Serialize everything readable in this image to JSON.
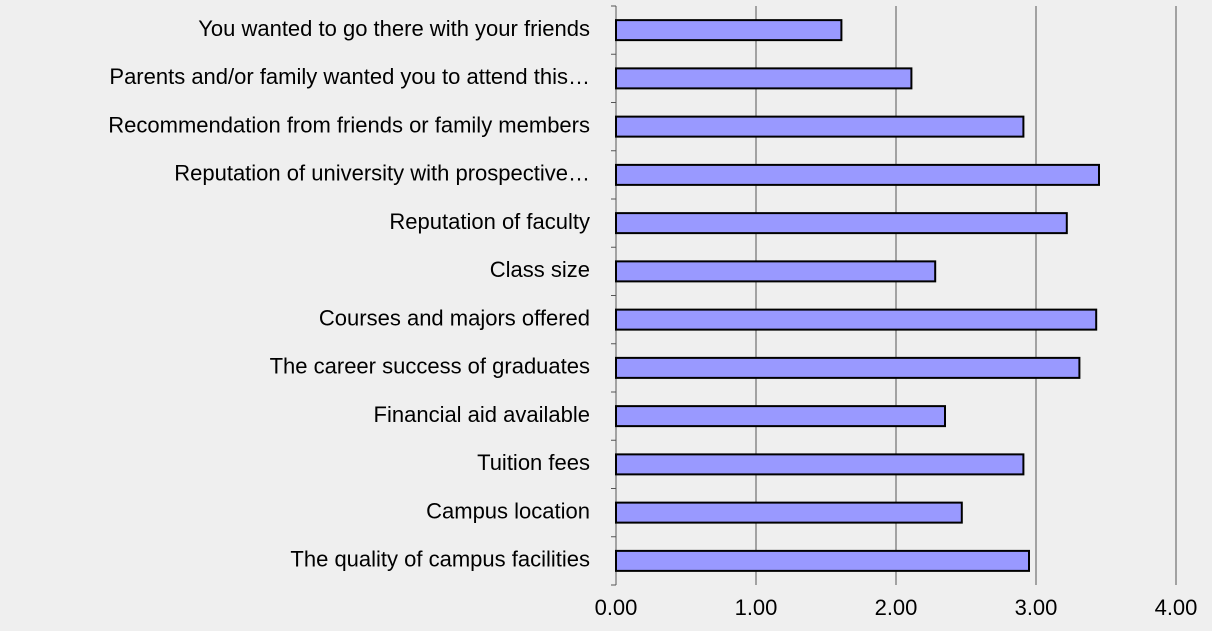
{
  "chart_data": {
    "type": "barh",
    "categories": [
      "You wanted to go there with your friends",
      "Parents and/or family wanted you to attend this…",
      "Recommendation from friends or family members",
      "Reputation of university with prospective…",
      "Reputation of faculty",
      "Class size",
      "Courses and majors offered",
      "The career success of graduates",
      "Financial aid available",
      "Tuition fees",
      "Campus location",
      "The quality of campus facilities"
    ],
    "values": [
      1.61,
      2.11,
      2.91,
      3.45,
      3.22,
      2.28,
      3.43,
      3.31,
      2.35,
      2.91,
      2.47,
      2.95
    ],
    "color": "#9999ff",
    "xlim": [
      0,
      4
    ],
    "xticks": [
      {
        "value": 0,
        "label": "0.00"
      },
      {
        "value": 1,
        "label": "1.00"
      },
      {
        "value": 2,
        "label": "2.00"
      },
      {
        "value": 3,
        "label": "3.00"
      },
      {
        "value": 4,
        "label": "4.00"
      }
    ],
    "grid": true
  }
}
